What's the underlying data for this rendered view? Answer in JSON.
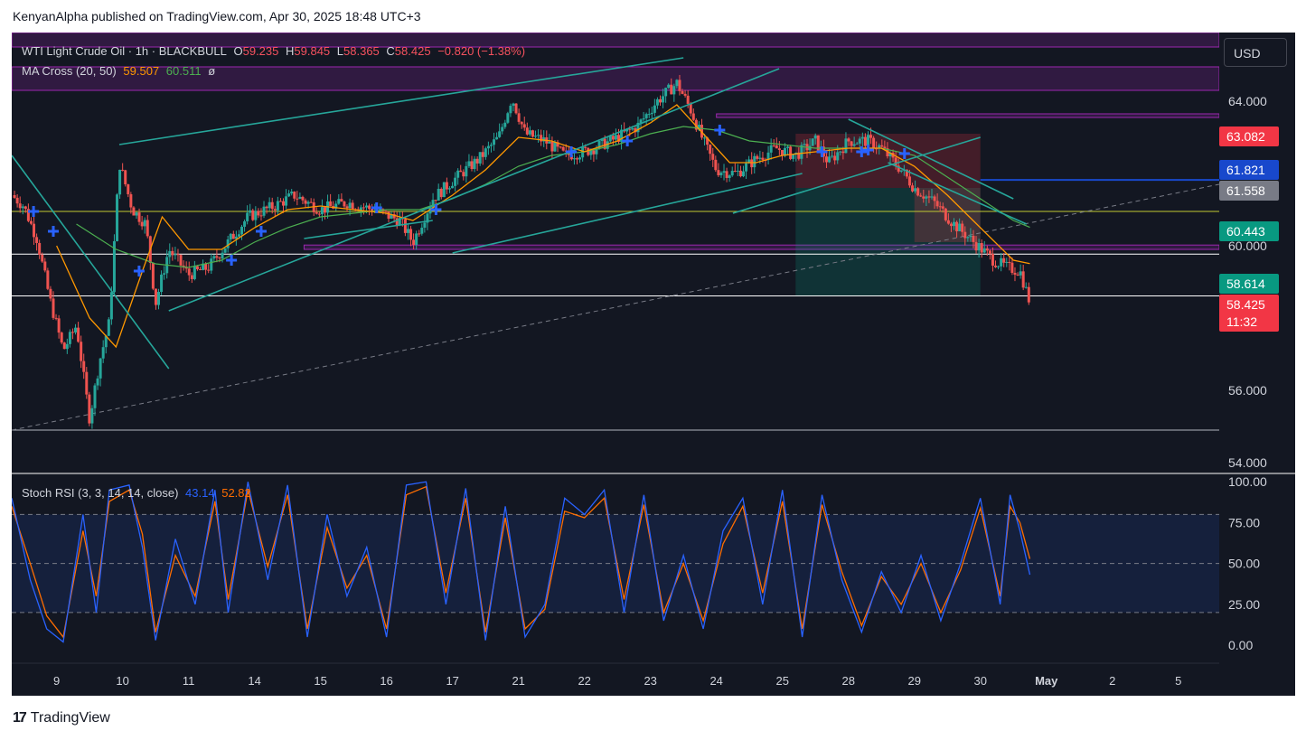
{
  "publisher_line": "KenyanAlpha published on TradingView.com, Apr 30, 2025 18:48 UTC+3",
  "footer_logo": "TradingView",
  "logo_mark": "17",
  "currency_button": "USD",
  "legend": {
    "symbol": "WTI Light Crude Oil · 1h · BLACKBULL",
    "o_label": "O",
    "o_value": "59.235",
    "h_label": "H",
    "h_value": "59.845",
    "l_label": "L",
    "l_value": "58.365",
    "c_label": "C",
    "c_value": "58.425",
    "change": "−0.820 (−1.38%)",
    "ma_label": "MA Cross (20, 50)",
    "ma_fast_value": "59.507",
    "ma_slow_value": "60.511",
    "ma_symbol": "ø",
    "rsi_label": "Stoch RSI (3, 3, 14, 14, close)",
    "rsi_k_value": "43.14",
    "rsi_d_value": "52.82"
  },
  "price_tags": [
    {
      "text": "63.082",
      "color": "#f23645"
    },
    {
      "text": "61.821",
      "color": "#1848cc"
    },
    {
      "text": "61.558",
      "color": "#787b86"
    },
    {
      "text": "60.443",
      "color": "#089981"
    },
    {
      "text": "58.614",
      "color": "#089981"
    },
    {
      "text": "58.425",
      "color": "#f23645"
    },
    {
      "text": "11:32",
      "color": "#f23645"
    }
  ],
  "colors": {
    "candle_up": "#26a69a",
    "candle_down": "#ef5350",
    "ma_fast": "#ff9800",
    "ma_slow": "#4caf50",
    "rsi_k": "#2962ff",
    "rsi_d": "#ff6d00",
    "trendline": "#26a69a",
    "zone": "#9c27b0"
  },
  "chart_data": [
    {
      "type": "candlestick",
      "title": "WTI Light Crude Oil · 1h · BLACKBULL",
      "price_ticks": [
        "64.000",
        "60.000",
        "56.000",
        "54.000"
      ],
      "price_tick_values": [
        64,
        60,
        56,
        54
      ],
      "ylim": [
        53.7,
        65.9
      ],
      "x_tick_labels": [
        "9",
        "10",
        "11",
        "14",
        "15",
        "16",
        "17",
        "21",
        "22",
        "23",
        "24",
        "25",
        "28",
        "29",
        "30",
        "May",
        "2",
        "5"
      ],
      "x_tick_positions": [
        0,
        1,
        2,
        3,
        4,
        5,
        6,
        7,
        8,
        9,
        10,
        11,
        12,
        13,
        14,
        15,
        16,
        17
      ],
      "x_range": [
        -0.68,
        17.62
      ],
      "close_path": [
        {
          "x": -0.68,
          "y": 61.4
        },
        {
          "x": -0.5,
          "y": 61.1
        },
        {
          "x": -0.3,
          "y": 60.2
        },
        {
          "x": -0.1,
          "y": 58.5
        },
        {
          "x": 0.1,
          "y": 57.1
        },
        {
          "x": 0.3,
          "y": 57.8
        },
        {
          "x": 0.5,
          "y": 55.2
        },
        {
          "x": 0.65,
          "y": 56.8
        },
        {
          "x": 0.8,
          "y": 57.9
        },
        {
          "x": 0.95,
          "y": 62.3
        },
        {
          "x": 1.15,
          "y": 61.0
        },
        {
          "x": 1.35,
          "y": 60.6
        },
        {
          "x": 1.5,
          "y": 58.4
        },
        {
          "x": 1.7,
          "y": 59.9
        },
        {
          "x": 2.0,
          "y": 59.2
        },
        {
          "x": 2.3,
          "y": 59.4
        },
        {
          "x": 2.6,
          "y": 60.1
        },
        {
          "x": 2.9,
          "y": 60.8
        },
        {
          "x": 3.3,
          "y": 61.1
        },
        {
          "x": 3.6,
          "y": 61.4
        },
        {
          "x": 4.0,
          "y": 61.0
        },
        {
          "x": 4.4,
          "y": 61.2
        },
        {
          "x": 4.8,
          "y": 61.0
        },
        {
          "x": 5.2,
          "y": 60.7
        },
        {
          "x": 5.4,
          "y": 60.1
        },
        {
          "x": 5.7,
          "y": 61.3
        },
        {
          "x": 6.0,
          "y": 61.8
        },
        {
          "x": 6.4,
          "y": 62.4
        },
        {
          "x": 6.7,
          "y": 63.0
        },
        {
          "x": 6.9,
          "y": 64.1
        },
        {
          "x": 7.1,
          "y": 63.1
        },
        {
          "x": 7.4,
          "y": 62.9
        },
        {
          "x": 7.7,
          "y": 62.5
        },
        {
          "x": 8.0,
          "y": 62.6
        },
        {
          "x": 8.4,
          "y": 62.9
        },
        {
          "x": 8.8,
          "y": 63.3
        },
        {
          "x": 9.1,
          "y": 64.0
        },
        {
          "x": 9.4,
          "y": 64.5
        },
        {
          "x": 9.6,
          "y": 63.8
        },
        {
          "x": 9.8,
          "y": 62.9
        },
        {
          "x": 10.0,
          "y": 62.1
        },
        {
          "x": 10.3,
          "y": 62.0
        },
        {
          "x": 10.6,
          "y": 62.4
        },
        {
          "x": 10.9,
          "y": 62.7
        },
        {
          "x": 11.2,
          "y": 62.5
        },
        {
          "x": 11.5,
          "y": 62.9
        },
        {
          "x": 11.7,
          "y": 62.3
        },
        {
          "x": 12.0,
          "y": 62.9
        },
        {
          "x": 12.3,
          "y": 62.9
        },
        {
          "x": 12.5,
          "y": 62.7
        },
        {
          "x": 12.8,
          "y": 62.1
        },
        {
          "x": 13.0,
          "y": 61.6
        },
        {
          "x": 13.3,
          "y": 61.2
        },
        {
          "x": 13.6,
          "y": 60.6
        },
        {
          "x": 13.9,
          "y": 60.1
        },
        {
          "x": 14.2,
          "y": 59.6
        },
        {
          "x": 14.4,
          "y": 59.4
        },
        {
          "x": 14.6,
          "y": 59.3
        },
        {
          "x": 14.75,
          "y": 58.425
        }
      ],
      "ma_fast_path": [
        {
          "x": 0.0,
          "y": 60.0
        },
        {
          "x": 0.5,
          "y": 58.0
        },
        {
          "x": 0.9,
          "y": 57.2
        },
        {
          "x": 1.3,
          "y": 59.3
        },
        {
          "x": 1.6,
          "y": 60.8
        },
        {
          "x": 2.0,
          "y": 59.9
        },
        {
          "x": 2.5,
          "y": 59.9
        },
        {
          "x": 3.0,
          "y": 60.5
        },
        {
          "x": 3.5,
          "y": 61.0
        },
        {
          "x": 4.0,
          "y": 61.1
        },
        {
          "x": 4.5,
          "y": 61.0
        },
        {
          "x": 5.0,
          "y": 60.9
        },
        {
          "x": 5.4,
          "y": 60.7
        },
        {
          "x": 6.0,
          "y": 61.4
        },
        {
          "x": 6.5,
          "y": 62.1
        },
        {
          "x": 7.0,
          "y": 63.0
        },
        {
          "x": 7.5,
          "y": 62.9
        },
        {
          "x": 8.0,
          "y": 62.6
        },
        {
          "x": 8.5,
          "y": 62.9
        },
        {
          "x": 9.0,
          "y": 63.4
        },
        {
          "x": 9.4,
          "y": 63.9
        },
        {
          "x": 9.8,
          "y": 63.1
        },
        {
          "x": 10.2,
          "y": 62.3
        },
        {
          "x": 10.6,
          "y": 62.3
        },
        {
          "x": 11.0,
          "y": 62.5
        },
        {
          "x": 11.5,
          "y": 62.6
        },
        {
          "x": 12.0,
          "y": 62.7
        },
        {
          "x": 12.5,
          "y": 62.7
        },
        {
          "x": 13.0,
          "y": 62.2
        },
        {
          "x": 13.5,
          "y": 61.4
        },
        {
          "x": 14.0,
          "y": 60.5
        },
        {
          "x": 14.5,
          "y": 59.6
        },
        {
          "x": 14.75,
          "y": 59.507
        }
      ],
      "ma_slow_path": [
        {
          "x": 0.3,
          "y": 60.6
        },
        {
          "x": 0.9,
          "y": 59.9
        },
        {
          "x": 1.5,
          "y": 59.5
        },
        {
          "x": 2.0,
          "y": 59.4
        },
        {
          "x": 2.5,
          "y": 59.6
        },
        {
          "x": 3.0,
          "y": 60.1
        },
        {
          "x": 3.5,
          "y": 60.5
        },
        {
          "x": 4.0,
          "y": 60.8
        },
        {
          "x": 4.5,
          "y": 60.9
        },
        {
          "x": 5.0,
          "y": 61.0
        },
        {
          "x": 5.5,
          "y": 61.0
        },
        {
          "x": 6.0,
          "y": 61.3
        },
        {
          "x": 6.5,
          "y": 61.7
        },
        {
          "x": 7.0,
          "y": 62.2
        },
        {
          "x": 7.5,
          "y": 62.5
        },
        {
          "x": 8.0,
          "y": 62.6
        },
        {
          "x": 8.5,
          "y": 62.8
        },
        {
          "x": 9.0,
          "y": 63.1
        },
        {
          "x": 9.5,
          "y": 63.3
        },
        {
          "x": 10.0,
          "y": 63.2
        },
        {
          "x": 10.5,
          "y": 62.9
        },
        {
          "x": 11.0,
          "y": 62.8
        },
        {
          "x": 11.5,
          "y": 62.7
        },
        {
          "x": 12.0,
          "y": 62.7
        },
        {
          "x": 12.5,
          "y": 62.7
        },
        {
          "x": 13.0,
          "y": 62.5
        },
        {
          "x": 13.5,
          "y": 61.9
        },
        {
          "x": 14.0,
          "y": 61.3
        },
        {
          "x": 14.5,
          "y": 60.7
        },
        {
          "x": 14.75,
          "y": 60.511
        }
      ],
      "trendlines": [
        {
          "x1": -0.68,
          "y1": 62.5,
          "x2": 1.7,
          "y2": 56.6
        },
        {
          "x1": 0.95,
          "y1": 62.8,
          "x2": 9.5,
          "y2": 65.2
        },
        {
          "x1": 1.7,
          "y1": 58.2,
          "x2": 10.95,
          "y2": 64.9
        },
        {
          "x1": 6.0,
          "y1": 59.8,
          "x2": 11.3,
          "y2": 62.0
        },
        {
          "x1": 3.75,
          "y1": 60.2,
          "x2": 5.7,
          "y2": 60.7
        },
        {
          "x1": 10.25,
          "y1": 60.9,
          "x2": 14.0,
          "y2": 63.0
        },
        {
          "x1": 12.0,
          "y1": 63.5,
          "x2": 14.5,
          "y2": 61.3
        },
        {
          "x1": 12.6,
          "y1": 62.3,
          "x2": 14.7,
          "y2": 60.6
        }
      ],
      "dashed_trendline": {
        "x1": -0.68,
        "y1": 54.9,
        "x2": 17.62,
        "y2": 61.7
      },
      "horizontal_levels": [
        {
          "y": 59.77,
          "color": "#ffffff"
        },
        {
          "y": 58.614,
          "color": "#ffffff"
        },
        {
          "y": 54.9,
          "color": "#b2b5be"
        },
        {
          "y": 60.95,
          "color": "#c0ca33"
        },
        {
          "y": 61.821,
          "color": "#1848cc",
          "x1": 14.0,
          "x2": 17.62
        }
      ],
      "zones": [
        {
          "x1": -0.68,
          "x2": 17.62,
          "y1": 65.5,
          "y2": 65.9
        },
        {
          "x1": -0.68,
          "x2": 17.62,
          "y1": 64.3,
          "y2": 64.95
        },
        {
          "x1": 10.0,
          "x2": 17.62,
          "y1": 63.55,
          "y2": 63.65
        },
        {
          "x1": 3.75,
          "x2": 17.62,
          "y1": 59.9,
          "y2": 60.02
        }
      ],
      "position_boxes": [
        {
          "x1": 11.2,
          "x2": 14.0,
          "risk_top": 63.1,
          "entry": 61.6,
          "target": 58.614
        },
        {
          "x1": 13.0,
          "x2": 14.0,
          "risk_top": 61.6,
          "entry": 60.1,
          "target": 60.1
        }
      ],
      "cross_markers": [
        {
          "x": -0.35,
          "y": 60.95
        },
        {
          "x": -0.05,
          "y": 60.4
        },
        {
          "x": 1.25,
          "y": 59.3
        },
        {
          "x": 2.65,
          "y": 59.6
        },
        {
          "x": 3.1,
          "y": 60.4
        },
        {
          "x": 4.85,
          "y": 61.05
        },
        {
          "x": 5.75,
          "y": 61.0
        },
        {
          "x": 7.8,
          "y": 62.6
        },
        {
          "x": 8.65,
          "y": 62.9
        },
        {
          "x": 10.05,
          "y": 63.2
        },
        {
          "x": 11.6,
          "y": 62.6
        },
        {
          "x": 12.2,
          "y": 62.6
        },
        {
          "x": 12.3,
          "y": 62.65
        },
        {
          "x": 12.85,
          "y": 62.55
        }
      ]
    },
    {
      "type": "line",
      "title": "Stoch RSI (3, 3, 14, 14, close)",
      "y_ticks": [
        "100.00",
        "75.00",
        "50.00",
        "25.00",
        "0.00"
      ],
      "y_tick_values": [
        100,
        75,
        50,
        25,
        0
      ],
      "band": [
        20,
        80
      ],
      "ylim": [
        -11,
        104
      ],
      "series": [
        {
          "name": "K",
          "color": "#2962ff",
          "x": [
            -0.68,
            -0.4,
            -0.15,
            0.1,
            0.4,
            0.6,
            0.8,
            1.1,
            1.3,
            1.5,
            1.8,
            2.1,
            2.4,
            2.6,
            2.9,
            3.2,
            3.5,
            3.8,
            4.1,
            4.4,
            4.7,
            5.0,
            5.3,
            5.6,
            5.9,
            6.2,
            6.5,
            6.8,
            7.1,
            7.4,
            7.7,
            8.0,
            8.3,
            8.6,
            8.9,
            9.2,
            9.5,
            9.8,
            10.1,
            10.4,
            10.7,
            11.0,
            11.3,
            11.6,
            11.9,
            12.2,
            12.5,
            12.8,
            13.1,
            13.4,
            13.7,
            14.0,
            14.3,
            14.45,
            14.6,
            14.75
          ],
          "values": [
            90,
            40,
            10,
            2,
            80,
            20,
            95,
            98,
            60,
            3,
            65,
            25,
            95,
            20,
            100,
            40,
            98,
            5,
            80,
            30,
            60,
            5,
            98,
            100,
            25,
            96,
            3,
            85,
            5,
            25,
            90,
            80,
            95,
            20,
            92,
            15,
            55,
            10,
            70,
            90,
            25,
            95,
            5,
            92,
            40,
            8,
            45,
            20,
            55,
            15,
            50,
            90,
            25,
            92,
            70,
            43.14
          ]
        },
        {
          "name": "D",
          "color": "#ff6d00",
          "x": [
            -0.68,
            -0.4,
            -0.15,
            0.1,
            0.4,
            0.6,
            0.8,
            1.1,
            1.3,
            1.5,
            1.8,
            2.1,
            2.4,
            2.6,
            2.9,
            3.2,
            3.5,
            3.8,
            4.1,
            4.4,
            4.7,
            5.0,
            5.3,
            5.6,
            5.9,
            6.2,
            6.5,
            6.8,
            7.1,
            7.4,
            7.7,
            8.0,
            8.3,
            8.6,
            8.9,
            9.2,
            9.5,
            9.8,
            10.1,
            10.4,
            10.7,
            11.0,
            11.3,
            11.6,
            11.9,
            12.2,
            12.5,
            12.8,
            13.1,
            13.4,
            13.7,
            14.0,
            14.3,
            14.45,
            14.6,
            14.75
          ],
          "values": [
            85,
            50,
            18,
            5,
            70,
            30,
            88,
            95,
            68,
            8,
            55,
            30,
            88,
            28,
            95,
            48,
            92,
            10,
            72,
            35,
            55,
            10,
            92,
            97,
            32,
            90,
            8,
            78,
            10,
            22,
            82,
            78,
            90,
            28,
            86,
            20,
            50,
            15,
            62,
            85,
            32,
            88,
            10,
            86,
            45,
            12,
            42,
            25,
            50,
            20,
            46,
            84,
            30,
            85,
            75,
            52.82
          ]
        }
      ]
    }
  ]
}
